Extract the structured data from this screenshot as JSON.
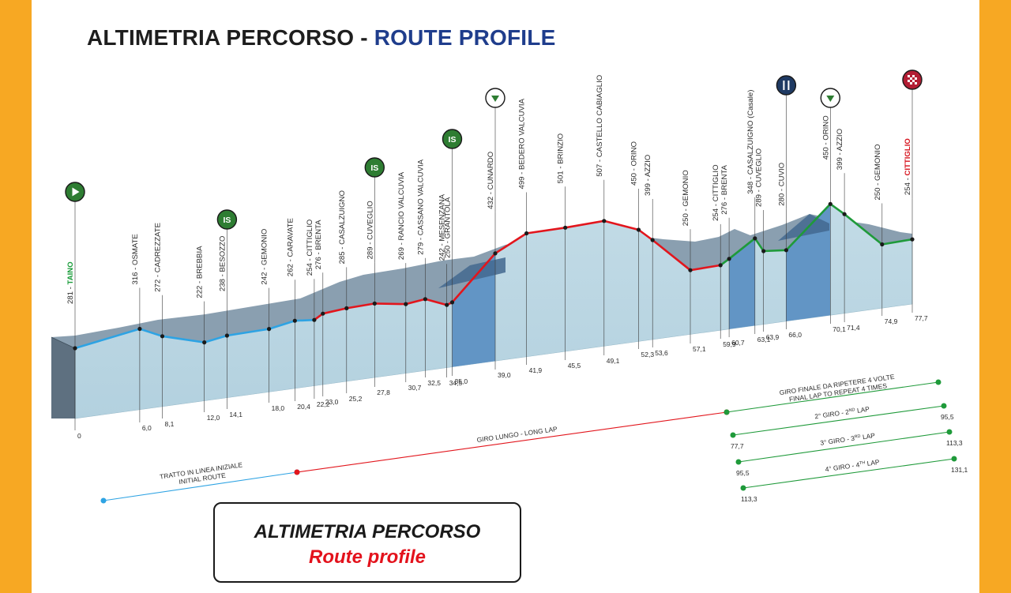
{
  "title": {
    "it": "ALTIMETRIA PERCORSO - ",
    "en": "ROUTE PROFILE"
  },
  "legend": {
    "it": "ALTIMETRIA PERCORSO",
    "en": "Route profile"
  },
  "colors": {
    "initial_route": "#2ea3e3",
    "long_lap": "#e2161d",
    "final_lap": "#1f9a3a",
    "climb": "#5a8fc2",
    "profile_front": "#b3d1df",
    "profile_top": "#8a9fb0",
    "icon_green": "#2e7d32",
    "icon_navy": "#1f3a63",
    "icon_red": "#b21d33"
  },
  "chart_data": {
    "type": "area",
    "points": [
      {
        "km": 0,
        "alt": 281,
        "name": "TAINO",
        "style": "green"
      },
      {
        "km": 6.0,
        "alt": 316,
        "name": "OSMATE"
      },
      {
        "km": 8.1,
        "alt": 272,
        "name": "CADREZZATE"
      },
      {
        "km": 12.0,
        "alt": 222,
        "name": "BREBBIA"
      },
      {
        "km": 14.1,
        "alt": 238,
        "name": "BESOZZO"
      },
      {
        "km": 18.0,
        "alt": 242,
        "name": "GEMONIO"
      },
      {
        "km": 20.4,
        "alt": 262,
        "name": "CARAVATE"
      },
      {
        "km": 22.2,
        "alt": 254,
        "name": "CITTIGLIO"
      },
      {
        "km": 23.0,
        "alt": 276,
        "name": "BRENTA"
      },
      {
        "km": 25.2,
        "alt": 285,
        "name": "CASALZUIGNO"
      },
      {
        "km": 27.8,
        "alt": 289,
        "name": "CUVEGLIO"
      },
      {
        "km": 30.7,
        "alt": 269,
        "name": "RANCIO VALCUVIA"
      },
      {
        "km": 32.5,
        "alt": 279,
        "name": "CASSANO VALCUVIA"
      },
      {
        "km": 34.5,
        "alt": 242,
        "name": "MESENZANA"
      },
      {
        "km": 35.0,
        "alt": 250,
        "name": "GRANTOLA"
      },
      {
        "km": 39.0,
        "alt": 432,
        "name": "CUNARDO"
      },
      {
        "km": 41.9,
        "alt": 499,
        "name": "BEDERO VALCUVIA"
      },
      {
        "km": 45.5,
        "alt": 501,
        "name": "BRINZIO"
      },
      {
        "km": 49.1,
        "alt": 507,
        "name": "CASTELLO CABIAGLIO"
      },
      {
        "km": 52.3,
        "alt": 450,
        "name": "ORINO"
      },
      {
        "km": 53.6,
        "alt": 399,
        "name": "AZZIO"
      },
      {
        "km": 57.1,
        "alt": 250,
        "name": "GEMONIO"
      },
      {
        "km": 59.9,
        "alt": 254,
        "name": "CITTIGLIO"
      },
      {
        "km": 60.7,
        "alt": 276,
        "name": "BRENTA"
      },
      {
        "km": 63.1,
        "alt": 348,
        "name": "CASALZUIGNO (Casale)"
      },
      {
        "km": 63.9,
        "alt": 289,
        "name": "CUVEGLIO"
      },
      {
        "km": 66.0,
        "alt": 280,
        "name": "CUVIO"
      },
      {
        "km": 70.1,
        "alt": 450,
        "name": "ORINO"
      },
      {
        "km": 71.4,
        "alt": 399,
        "name": "AZZIO"
      },
      {
        "km": 74.9,
        "alt": 250,
        "name": "GEMONIO"
      },
      {
        "km": 77.7,
        "alt": 254,
        "name": "CITTIGLIO",
        "style": "red"
      }
    ],
    "km_labels": [
      "0",
      "6,0",
      "8,1",
      "12,0",
      "14,1",
      "18,0",
      "20,4",
      "22,2",
      "23,0",
      "25,2",
      "27,8",
      "30,7",
      "32,5",
      "34,5",
      "35,0",
      "39,0",
      "41,9",
      "45,5",
      "49,1",
      "52,3",
      "53,6",
      "57,1",
      "59,9",
      "60,7",
      "63,1",
      "63,9",
      "66,0",
      "70,1",
      "71,4",
      "74,9",
      "77,7"
    ],
    "icons": [
      {
        "type": "start",
        "km": 0
      },
      {
        "type": "sprint",
        "label": "IS",
        "km": 14.1
      },
      {
        "type": "sprint",
        "label": "IS",
        "km": 27.8
      },
      {
        "type": "sprint",
        "label": "IS",
        "km": 35.0
      },
      {
        "type": "gpm",
        "km": 39.0
      },
      {
        "type": "feed",
        "km": 66.0
      },
      {
        "type": "gpm",
        "km": 70.1
      },
      {
        "type": "finish",
        "km": 77.7
      }
    ]
  },
  "laps": [
    {
      "id": "initial",
      "label": "TRATTO IN LINEA INIZIALE",
      "label_en": "INITIAL ROUTE"
    },
    {
      "id": "long",
      "label": "GIRO LUNGO - LONG LAP"
    },
    {
      "id": "final",
      "label": "GIRO FINALE DA RIPETERE 4 VOLTE",
      "label_en": "FINAL LAP TO REPEAT 4 TIMES"
    },
    {
      "id": "lap2",
      "label": "2° GIRO - 2",
      "sup": "ND",
      "tail": " LAP",
      "start": "77,7",
      "end": "95,5"
    },
    {
      "id": "lap3",
      "label": "3° GIRO - 3",
      "sup": "RD",
      "tail": " LAP",
      "start": "95,5",
      "end": "113,3"
    },
    {
      "id": "lap4",
      "label": "4° GIRO - 4",
      "sup": "TH",
      "tail": " LAP",
      "start": "113,3",
      "end": "131,1"
    }
  ]
}
